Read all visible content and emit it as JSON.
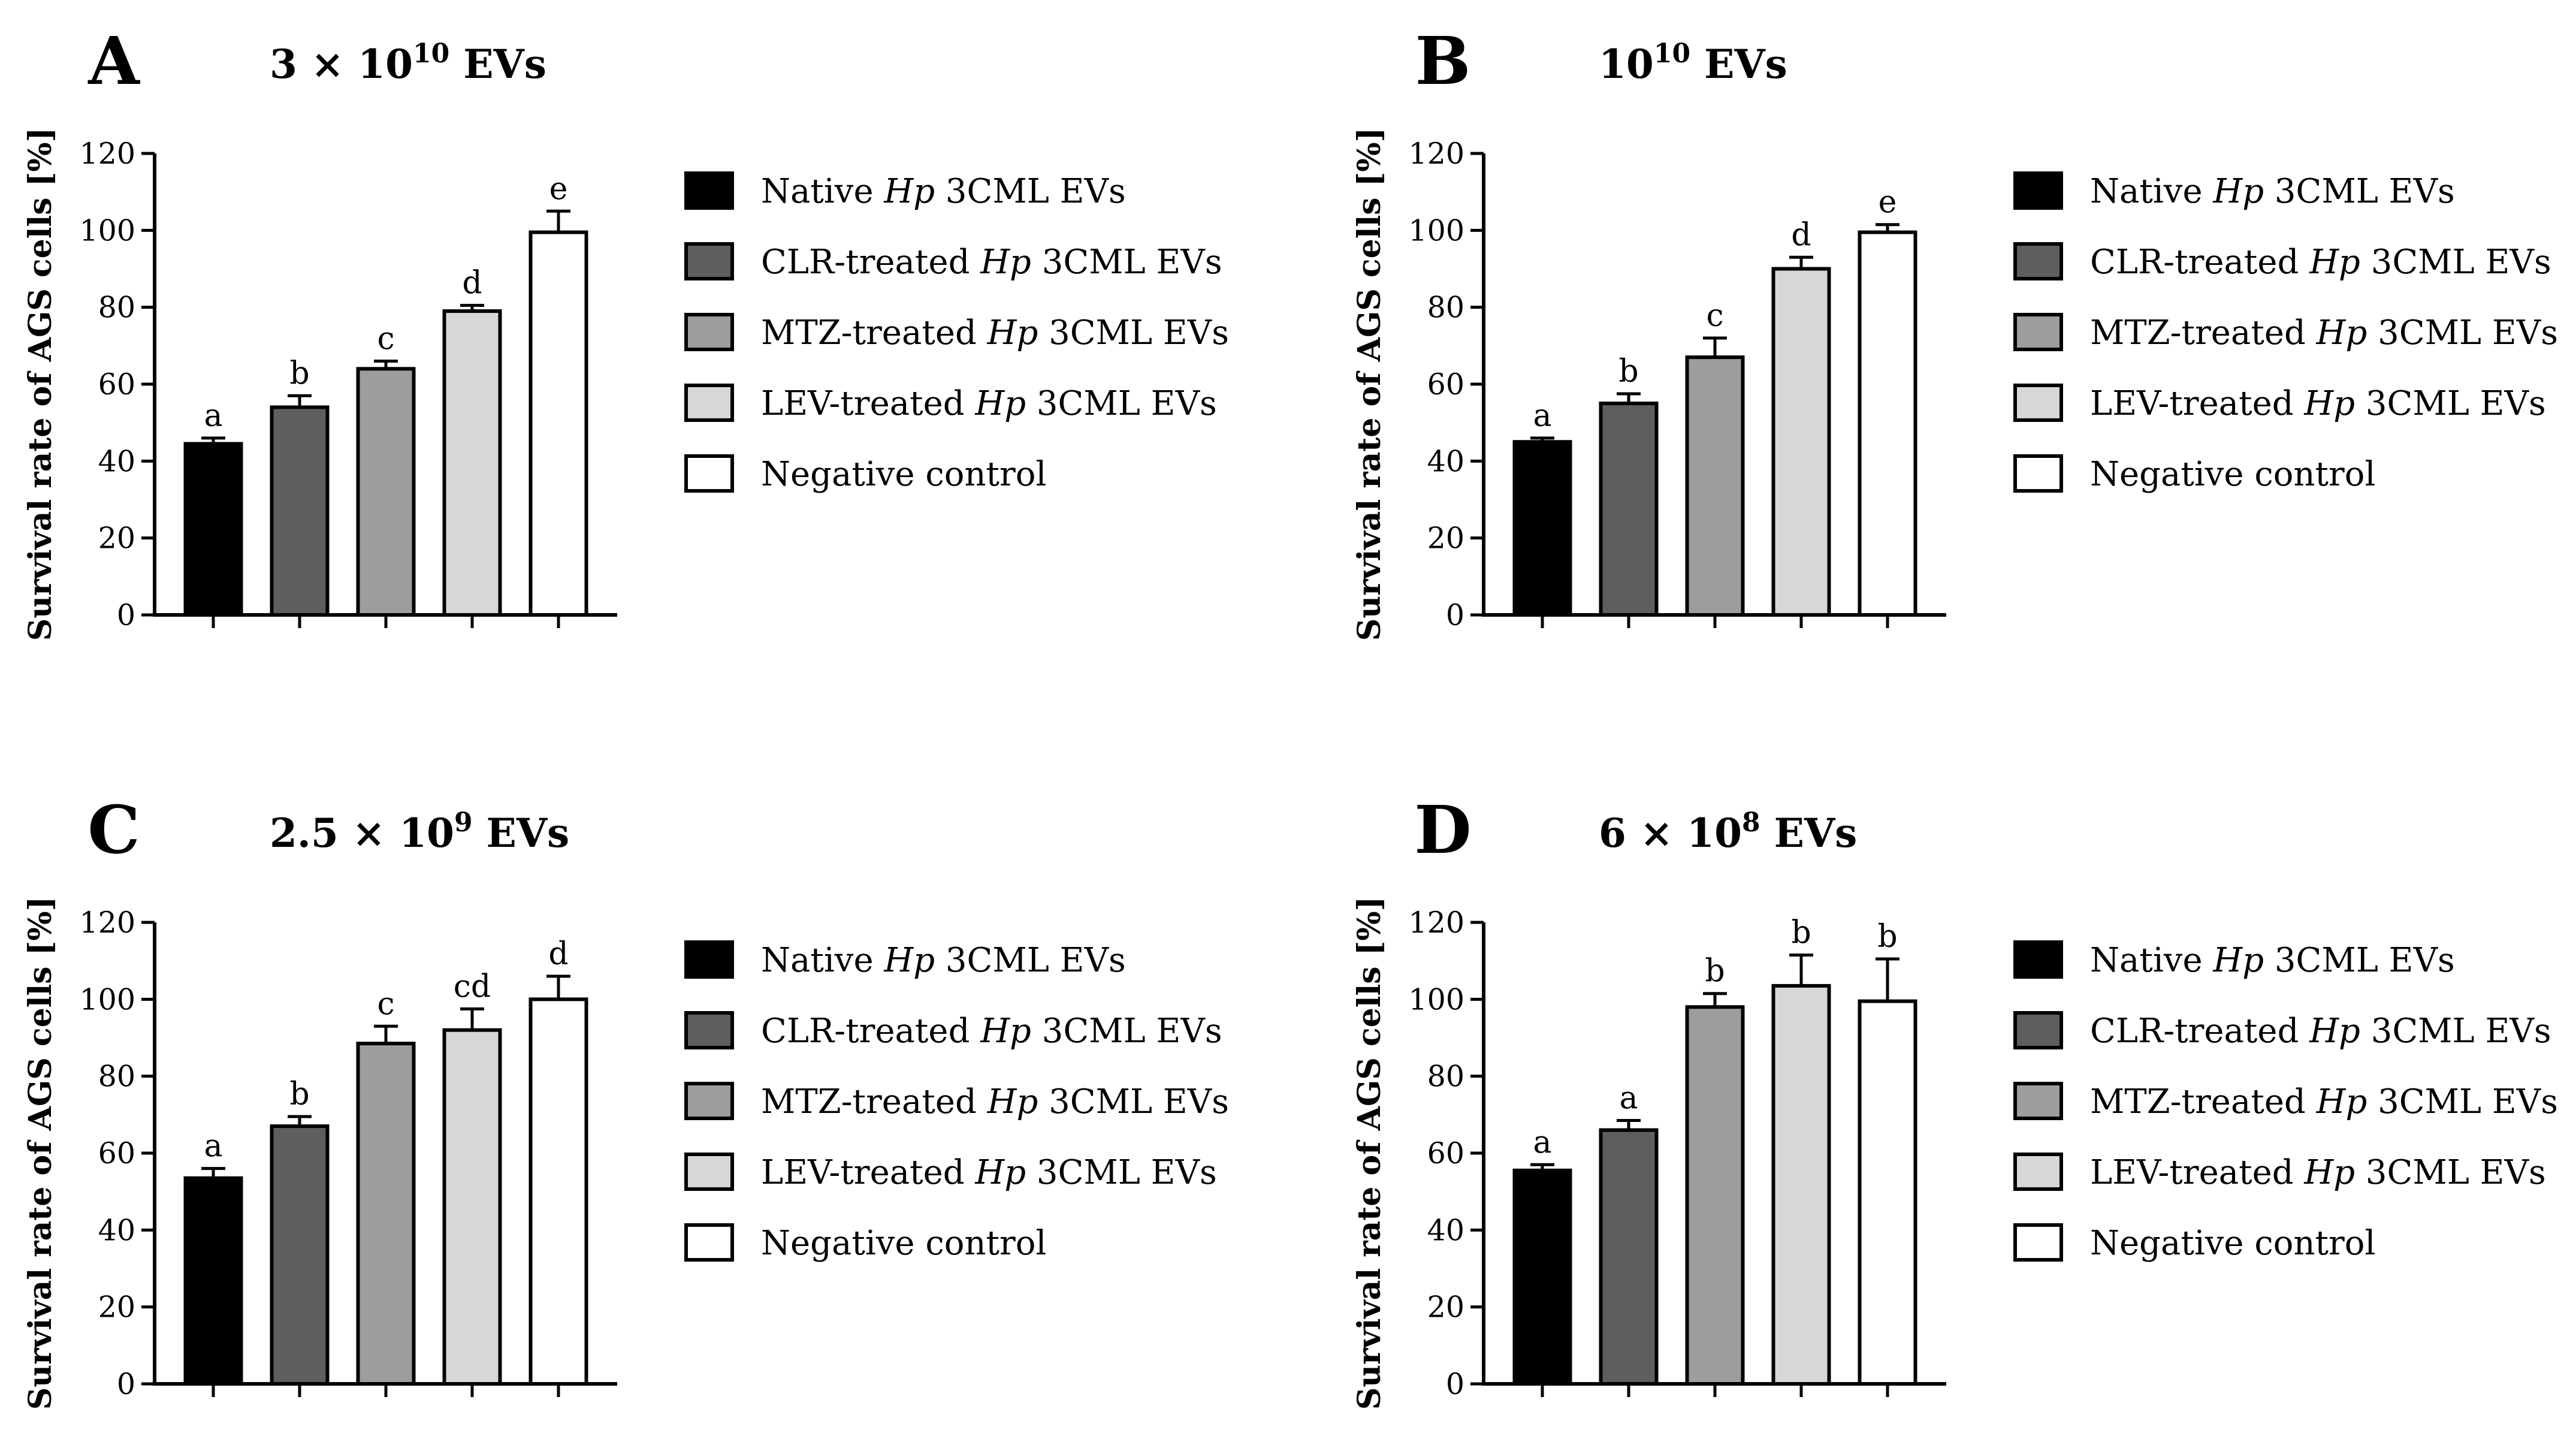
{
  "figure": {
    "legend": [
      {
        "prefix": "Native ",
        "italic": "Hp",
        "suffix": " 3CML EVs",
        "color": "#000000"
      },
      {
        "prefix": "CLR-treated ",
        "italic": "Hp",
        "suffix": " 3CML EVs",
        "color": "#5e5e5e"
      },
      {
        "prefix": "MTZ-treated ",
        "italic": "Hp",
        "suffix": " 3CML EVs",
        "color": "#9d9d9d"
      },
      {
        "prefix": "LEV-treated ",
        "italic": "Hp",
        "suffix": " 3CML EVs",
        "color": "#d7d7d7"
      },
      {
        "prefix": "Negative control",
        "italic": "",
        "suffix": "",
        "color": "#ffffff"
      }
    ]
  },
  "chart_data": [
    {
      "type": "bar",
      "panel": "A",
      "title_base": "3 × 10",
      "title_exp": "10",
      "title_suffix": " EVs",
      "ylabel": "Survival rate of AGS cells [%]",
      "ylim": [
        0,
        120
      ],
      "yticks": [
        0,
        20,
        40,
        60,
        80,
        100,
        120
      ],
      "categories": [
        "Native Hp 3CML EVs",
        "CLR-treated Hp 3CML EVs",
        "MTZ-treated Hp 3CML EVs",
        "LEV-treated Hp 3CML EVs",
        "Negative control"
      ],
      "values": [
        44.5,
        54,
        64,
        79,
        99.5
      ],
      "errors": [
        1.5,
        3,
        2,
        1.5,
        5.5
      ],
      "labels": [
        "a",
        "b",
        "c",
        "d",
        "e"
      ]
    },
    {
      "type": "bar",
      "panel": "B",
      "title_base": "10",
      "title_exp": "10",
      "title_suffix": " EVs",
      "ylabel": "Survival rate of AGS cells [%]",
      "ylim": [
        0,
        120
      ],
      "yticks": [
        0,
        20,
        40,
        60,
        80,
        100,
        120
      ],
      "categories": [
        "Native Hp 3CML EVs",
        "CLR-treated Hp 3CML EVs",
        "MTZ-treated Hp 3CML EVs",
        "LEV-treated Hp 3CML EVs",
        "Negative control"
      ],
      "values": [
        45,
        55,
        67,
        90,
        99.5
      ],
      "errors": [
        1,
        2.5,
        5,
        3,
        2
      ],
      "labels": [
        "a",
        "b",
        "c",
        "d",
        "e"
      ]
    },
    {
      "type": "bar",
      "panel": "C",
      "title_base": "2.5 × 10",
      "title_exp": "9",
      "title_suffix": " EVs",
      "ylabel": "Survival rate of AGS cells [%]",
      "ylim": [
        0,
        120
      ],
      "yticks": [
        0,
        20,
        40,
        60,
        80,
        100,
        120
      ],
      "categories": [
        "Native Hp 3CML EVs",
        "CLR-treated Hp 3CML EVs",
        "MTZ-treated Hp 3CML EVs",
        "LEV-treated Hp 3CML EVs",
        "Negative control"
      ],
      "values": [
        53.5,
        67,
        88.5,
        92,
        100
      ],
      "errors": [
        2.5,
        2.5,
        4.5,
        5.5,
        6
      ],
      "labels": [
        "a",
        "b",
        "c",
        "cd",
        "d"
      ]
    },
    {
      "type": "bar",
      "panel": "D",
      "title_base": "6 × 10",
      "title_exp": "8",
      "title_suffix": " EVs",
      "ylabel": "Survival rate of AGS cells [%]",
      "ylim": [
        0,
        120
      ],
      "yticks": [
        0,
        20,
        40,
        60,
        80,
        100,
        120
      ],
      "categories": [
        "Native Hp 3CML EVs",
        "CLR-treated Hp 3CML EVs",
        "MTZ-treated Hp 3CML EVs",
        "LEV-treated Hp 3CML EVs",
        "Negative control"
      ],
      "values": [
        55.5,
        66,
        98,
        103.5,
        99.5
      ],
      "errors": [
        1.5,
        2.5,
        3.5,
        8,
        11
      ],
      "labels": [
        "a",
        "a",
        "b",
        "b",
        "b"
      ]
    }
  ]
}
